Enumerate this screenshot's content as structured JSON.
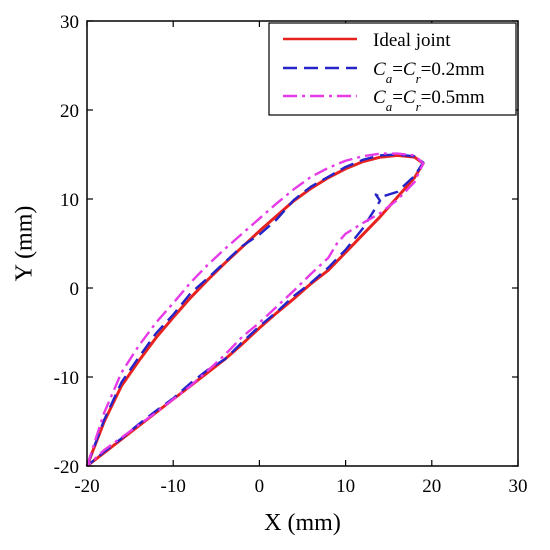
{
  "chart_data": {
    "type": "line",
    "title": "",
    "xlabel": "X (mm)",
    "ylabel": "Y (mm)",
    "xlim": [
      -20,
      30
    ],
    "ylim": [
      -20,
      30
    ],
    "xticks": [
      -20,
      -10,
      0,
      10,
      20,
      30
    ],
    "yticks": [
      -20,
      -10,
      0,
      10,
      20,
      30
    ],
    "grid": false,
    "legend_position": "top-right",
    "series": [
      {
        "name": "Ideal joint",
        "color": "#e8231f",
        "style": "solid",
        "x": [
          -20,
          -18,
          -16,
          -14,
          -12,
          -10,
          -8,
          -6,
          -4,
          -2,
          0,
          2,
          4,
          6,
          8,
          10,
          12,
          14,
          16,
          18,
          19,
          18,
          16,
          14,
          12,
          10,
          8,
          6,
          4,
          2,
          0,
          -2,
          -4,
          -6,
          -8,
          -10,
          -12,
          -14,
          -16,
          -18,
          -20
        ],
        "y": [
          -20,
          -15,
          -11,
          -8.2,
          -5.6,
          -3.3,
          -1.1,
          0.9,
          2.8,
          4.6,
          6.4,
          8.1,
          9.8,
          11.2,
          12.4,
          13.4,
          14.2,
          14.7,
          14.9,
          14.7,
          14,
          12.4,
          10.2,
          8,
          6,
          4,
          2,
          0.5,
          -1.2,
          -2.8,
          -4.5,
          -6.3,
          -8,
          -9.5,
          -11,
          -12.5,
          -14,
          -15.5,
          -17,
          -18.5,
          -20
        ]
      },
      {
        "name": "Ca=Cr=0.2mm",
        "color": "#2424c8",
        "style": "dashed",
        "x": [
          -20,
          -18,
          -16,
          -14,
          -12,
          -10,
          -8,
          -6,
          -4,
          -2,
          0,
          2,
          4,
          6,
          8,
          10,
          12,
          14,
          16,
          18,
          19,
          18,
          16,
          14,
          13.5,
          14,
          12,
          10,
          8,
          6,
          4,
          2,
          0,
          -2,
          -4,
          -6,
          -8,
          -10,
          -12,
          -14,
          -16,
          -18,
          -20
        ],
        "y": [
          -20,
          -14.8,
          -10.6,
          -7.8,
          -5.1,
          -3,
          -0.6,
          1.1,
          2.9,
          4.7,
          6,
          7.7,
          9.9,
          11.4,
          12.5,
          13.6,
          14.4,
          14.9,
          15,
          14.8,
          14.1,
          12.6,
          10.8,
          10.2,
          10.5,
          9.8,
          6.7,
          4.3,
          2.3,
          0.6,
          -0.9,
          -2.7,
          -4.3,
          -6.1,
          -8,
          -9.2,
          -10.7,
          -12.4,
          -13.8,
          -15.3,
          -16.9,
          -18.4,
          -20
        ]
      },
      {
        "name": "Ca=Cr=0.5mm",
        "color": "#e63ae6",
        "style": "dashdot",
        "x": [
          -20,
          -18,
          -16,
          -14,
          -12,
          -10,
          -8,
          -6,
          -4,
          -2,
          0,
          2,
          4,
          6,
          8,
          10,
          12,
          14,
          16,
          18,
          19,
          18,
          16,
          14,
          12,
          10,
          9,
          8,
          6,
          4,
          2,
          0,
          -2,
          -4,
          -6,
          -8,
          -10,
          -12,
          -14,
          -16,
          -18,
          -20
        ],
        "y": [
          -20,
          -14,
          -9.5,
          -6.5,
          -3.9,
          -1.7,
          0.6,
          2.6,
          4.4,
          6.1,
          7.8,
          9.5,
          11.1,
          12.5,
          13.5,
          14.3,
          14.8,
          15.1,
          15.1,
          14.9,
          14,
          11.9,
          9.9,
          8.4,
          7.3,
          6.1,
          5,
          3.4,
          1.6,
          -0.3,
          -2.1,
          -3.9,
          -5.5,
          -7.5,
          -9.3,
          -11,
          -12.5,
          -14,
          -15.4,
          -16.8,
          -18.2,
          -20
        ]
      }
    ],
    "legend": {
      "entries": [
        {
          "text": "Ideal joint"
        },
        {
          "a": "C",
          "a_sub": "a",
          "eq": "=",
          "b": "C",
          "b_sub": "r",
          "tail": "=0.2mm"
        },
        {
          "a": "C",
          "a_sub": "a",
          "eq": "=",
          "b": "C",
          "b_sub": "r",
          "tail": "=0.5mm"
        }
      ]
    }
  }
}
